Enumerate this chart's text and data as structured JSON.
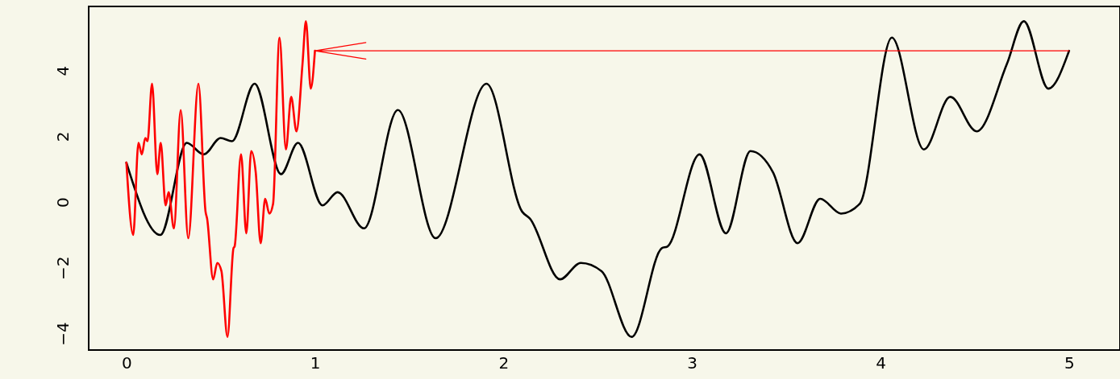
{
  "chart_data": {
    "type": "line",
    "xlim": [
      -0.2,
      5.27
    ],
    "ylim": [
      -4.5,
      5.95
    ],
    "xticks": [
      0,
      1,
      2,
      3,
      4,
      5
    ],
    "yticks": [
      -4,
      -2,
      0,
      2,
      4
    ],
    "grid": false,
    "series": [
      {
        "color": "#000000",
        "x": [
          0,
          0.18,
          0.32,
          0.41,
          0.5,
          0.56,
          0.68,
          0.82,
          0.91,
          1.04,
          1.12,
          1.26,
          1.44,
          1.64,
          1.91,
          2.1,
          2.14,
          2.3,
          2.41,
          2.52,
          2.68,
          2.84,
          2.87,
          3.04,
          3.18,
          3.31,
          3.43,
          3.56,
          3.68,
          3.79,
          3.89,
          4.06,
          4.23,
          4.37,
          4.51,
          4.67,
          4.76,
          4.89,
          5.0
        ],
        "values": [
          1.2,
          -1.0,
          1.8,
          1.45,
          1.95,
          1.85,
          3.6,
          0.85,
          1.8,
          -0.1,
          0.3,
          -0.8,
          2.8,
          -1.1,
          3.6,
          -0.3,
          -0.5,
          -2.35,
          -1.85,
          -2.1,
          -4.1,
          -1.4,
          -1.35,
          1.45,
          -0.95,
          1.55,
          0.9,
          -1.25,
          0.1,
          -0.35,
          -0.05,
          5.0,
          1.6,
          3.2,
          2.15,
          4.2,
          5.5,
          3.45,
          4.6
        ]
      },
      {
        "color": "#ff0000",
        "x": [
          0,
          0.036,
          0.064,
          0.082,
          0.1,
          0.112,
          0.136,
          0.164,
          0.182,
          0.208,
          0.224,
          0.252,
          0.288,
          0.328,
          0.382,
          0.42,
          0.428,
          0.46,
          0.482,
          0.504,
          0.536,
          0.568,
          0.574,
          0.608,
          0.636,
          0.662,
          0.686,
          0.712,
          0.736,
          0.758,
          0.778,
          0.812,
          0.846,
          0.874,
          0.902,
          0.934,
          0.952,
          0.978,
          1.0
        ],
        "values": [
          1.2,
          -1.0,
          1.8,
          1.45,
          1.95,
          1.85,
          3.6,
          0.85,
          1.8,
          -0.1,
          0.3,
          -0.8,
          2.8,
          -1.1,
          3.6,
          -0.3,
          -0.5,
          -2.35,
          -1.85,
          -2.1,
          -4.1,
          -1.4,
          -1.35,
          1.45,
          -0.95,
          1.55,
          0.9,
          -1.25,
          0.1,
          -0.35,
          -0.05,
          5.0,
          1.6,
          3.2,
          2.15,
          4.2,
          5.5,
          3.45,
          4.6
        ]
      },
      {
        "type": "line",
        "color": "#ff0000",
        "x": [
          1.27,
          1.0,
          1.27,
          1.0,
          5.0
        ],
        "values": [
          4.85,
          4.6,
          4.35,
          4.6,
          4.6
        ]
      }
    ]
  }
}
